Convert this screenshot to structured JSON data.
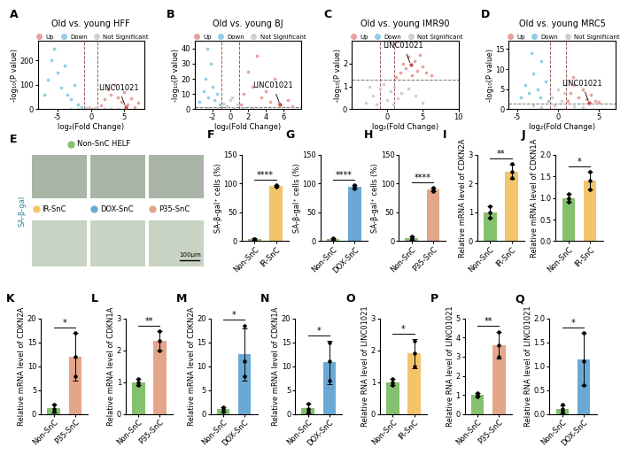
{
  "chart_data": [
    {
      "type": "scatter",
      "panel": "A",
      "title": "Old vs. young HFF",
      "x_label": "log₂(Fold Change)",
      "y_label": "-log₁₀(P value)",
      "xlim": [
        -8,
        8
      ],
      "xticks": [
        -5,
        0,
        5
      ],
      "ylim": [
        0,
        280
      ],
      "yticks": [
        0,
        100,
        200
      ],
      "vlines": [
        -1,
        1
      ],
      "hline": 1.3,
      "legend": "lower center",
      "series": [
        {
          "name": "Up",
          "color": "#e9a19b",
          "x": [
            1.5,
            2,
            2.5,
            3,
            3.5,
            4,
            4.5,
            5,
            5.5,
            6,
            6.5,
            7,
            5.2
          ],
          "values": [
            15,
            40,
            80,
            60,
            100,
            50,
            30,
            70,
            20,
            45,
            10,
            25,
            8
          ]
        },
        {
          "name": "Down",
          "color": "#92cde6",
          "x": [
            -7,
            -6.5,
            -6,
            -5.5,
            -5,
            -4.5,
            -4,
            -3.5,
            -3,
            -2.5,
            -2,
            -1.5
          ],
          "values": [
            60,
            120,
            200,
            250,
            150,
            90,
            180,
            60,
            40,
            100,
            20,
            10
          ]
        },
        {
          "name": "Not Significant",
          "color": "#cfcfcf",
          "x": [
            -0.8,
            -0.5,
            -0.2,
            0,
            0.3,
            0.6,
            0.9,
            -2,
            2,
            -3,
            3,
            4
          ],
          "values": [
            5,
            2,
            8,
            1,
            3,
            6,
            2,
            0.5,
            1,
            0.8,
            0.6,
            0.4
          ]
        }
      ],
      "annotation": {
        "text": "LINC01021",
        "x": 5.2,
        "y": 8
      }
    },
    {
      "type": "scatter",
      "panel": "B",
      "title": "Old vs. young BJ",
      "x_label": "log₂(Fold Change)",
      "y_label": "-log₁₀(P value)",
      "xlim": [
        -4,
        8
      ],
      "xticks": [
        -2,
        0,
        2,
        4,
        6
      ],
      "ylim": [
        0,
        45
      ],
      "yticks": [
        0,
        10,
        20,
        30,
        40
      ],
      "vlines": [
        -1,
        1
      ],
      "hline": 1.3,
      "legend": "lower center",
      "series": [
        {
          "name": "Up",
          "color": "#e9a19b",
          "x": [
            1.2,
            1.5,
            2,
            2.5,
            3,
            3.5,
            4,
            4.5,
            5,
            5.5,
            6.5,
            7,
            5.6
          ],
          "values": [
            3,
            10,
            25,
            15,
            35,
            8,
            12,
            5,
            20,
            4,
            6,
            2,
            3
          ]
        },
        {
          "name": "Down",
          "color": "#92cde6",
          "x": [
            -3.5,
            -3,
            -2.8,
            -2.5,
            -2.2,
            -2,
            -1.8,
            -1.5,
            -1.2,
            -2.6
          ],
          "values": [
            5,
            12,
            20,
            8,
            30,
            15,
            6,
            10,
            3,
            40
          ]
        },
        {
          "name": "Not Significant",
          "color": "#cfcfcf",
          "x": [
            -0.8,
            -0.4,
            0,
            0.4,
            0.8,
            -1.5,
            1.5,
            2.5,
            -2.5,
            0.2
          ],
          "values": [
            4,
            2,
            6,
            1,
            3,
            0.8,
            1,
            0.5,
            0.6,
            8
          ]
        }
      ],
      "annotation": {
        "text": "LINC01021",
        "x": 5.6,
        "y": 3
      }
    },
    {
      "type": "scatter",
      "panel": "C",
      "title": "Old vs. young IMR90",
      "x_label": "log₂(Fold Change)",
      "y_label": "-log₁₀(P value)",
      "xlim": [
        -5,
        10
      ],
      "xticks": [
        0,
        5,
        10
      ],
      "ylim": [
        0,
        3
      ],
      "yticks": [
        0,
        1,
        2
      ],
      "vlines": [
        -1,
        1
      ],
      "hline": 1.3,
      "legend": "lower center",
      "series": [
        {
          "name": "Up",
          "color": "#e9a19b",
          "x": [
            1.2,
            1.8,
            2.2,
            2.6,
            3,
            3.4,
            3.8,
            4.2,
            4.6,
            5,
            5.5,
            6.2,
            3.3
          ],
          "values": [
            1.4,
            1.6,
            2.0,
            1.8,
            2.3,
            1.5,
            2.1,
            1.7,
            2.4,
            1.9,
            1.6,
            1.5,
            1.95
          ]
        },
        {
          "name": "Down",
          "color": "#92cde6",
          "x": [],
          "values": []
        },
        {
          "name": "Not Significant",
          "color": "#cfcfcf",
          "x": [
            -3,
            -2,
            -1.5,
            -1,
            -0.5,
            0,
            0.5,
            1,
            1.5,
            2,
            3,
            4,
            5,
            -2.5,
            0.8
          ],
          "values": [
            0.3,
            0.6,
            0.2,
            0.9,
            1.1,
            0.4,
            0.8,
            1.0,
            0.5,
            0.7,
            0.9,
            0.6,
            0.3,
            1.0,
            0.2
          ]
        }
      ],
      "annotation": {
        "text": "LINC01021",
        "x": 3.3,
        "y": 1.95
      }
    },
    {
      "type": "scatter",
      "panel": "D",
      "title": "Old vs. young MRC5",
      "x_label": "log₂(Fold Change)",
      "y_label": "-log₁₀(P value)",
      "xlim": [
        -6,
        7
      ],
      "xticks": [
        -5,
        0,
        5
      ],
      "ylim": [
        0,
        17
      ],
      "yticks": [
        0,
        5,
        10,
        15
      ],
      "vlines": [
        -1,
        1
      ],
      "hline": 1.3,
      "legend": "lower center",
      "series": [
        {
          "name": "Up",
          "color": "#e9a19b",
          "x": [
            1.2,
            1.5,
            2,
            2.5,
            3,
            3.5,
            4,
            4.5,
            5,
            1.8,
            3.8
          ],
          "values": [
            2,
            4,
            6,
            3,
            5,
            2.5,
            3.5,
            2,
            1.8,
            8,
            1.6
          ]
        },
        {
          "name": "Down",
          "color": "#92cde6",
          "x": [
            -4.5,
            -4,
            -3.5,
            -3,
            -2.5,
            -2,
            -1.5,
            -1.2,
            -3.2,
            -2.2
          ],
          "values": [
            3,
            6,
            4,
            9,
            5,
            12,
            7,
            2,
            14,
            3
          ]
        },
        {
          "name": "Not Significant",
          "color": "#cfcfcf",
          "x": [
            -0.8,
            -0.4,
            0,
            0.4,
            0.8,
            -2,
            2,
            3,
            -3
          ],
          "values": [
            3,
            1,
            5,
            2,
            4,
            0.6,
            0.8,
            0.5,
            0.9
          ]
        }
      ],
      "annotation": {
        "text": "LINC01021",
        "x": 3.8,
        "y": 1.6
      }
    },
    {
      "type": "image_grid",
      "panel": "E",
      "header": {
        "name": "Non-SnC HELF",
        "color": "#84c06e"
      },
      "stain": "SA-β-gal",
      "scale_bar": "100μm",
      "conditions": [
        {
          "name": "IR-SnC",
          "color": "#f3c46b"
        },
        {
          "name": "DOX-SnC",
          "color": "#6ba9d5"
        },
        {
          "name": "P35-SnC",
          "color": "#e3a68a"
        }
      ]
    },
    {
      "type": "bar",
      "panel": "F",
      "categories": [
        "Non-SnC",
        "IR-SnC"
      ],
      "values": [
        3,
        96
      ],
      "errors": [
        1.5,
        1
      ],
      "points": [
        [
          2,
          3,
          4
        ],
        [
          95,
          96,
          97
        ]
      ],
      "colors": [
        "#84c06e",
        "#f3c46b"
      ],
      "y_label": "SA-β-gal⁺ cells (%)",
      "ylim": [
        0,
        150
      ],
      "yticks": [
        0,
        50,
        100,
        150
      ],
      "significance": "****"
    },
    {
      "type": "bar",
      "panel": "G",
      "categories": [
        "Non-SnC",
        "DOX-SnC"
      ],
      "values": [
        3,
        94
      ],
      "errors": [
        2,
        3
      ],
      "points": [
        [
          1.5,
          3,
          4.5
        ],
        [
          91,
          94,
          97
        ]
      ],
      "colors": [
        "#84c06e",
        "#6ba9d5"
      ],
      "y_label": "SA-β-gal⁺ cells (%)",
      "ylim": [
        0,
        150
      ],
      "yticks": [
        0,
        50,
        100,
        150
      ],
      "significance": "****"
    },
    {
      "type": "bar",
      "panel": "H",
      "categories": [
        "Non-SnC",
        "P35-SnC"
      ],
      "values": [
        5,
        90
      ],
      "errors": [
        3,
        3
      ],
      "points": [
        [
          2,
          5,
          8
        ],
        [
          87,
          90,
          93
        ]
      ],
      "colors": [
        "#84c06e",
        "#e3a68a"
      ],
      "y_label": "SA-β-gal⁺ cells (%)",
      "ylim": [
        0,
        150
      ],
      "yticks": [
        0,
        50,
        100,
        150
      ],
      "significance": "****"
    },
    {
      "type": "bar",
      "panel": "I",
      "categories": [
        "Non-SnC",
        "IR-SnC"
      ],
      "values": [
        1.0,
        2.4
      ],
      "errors": [
        0.2,
        0.25
      ],
      "points": [
        [
          0.8,
          1.0,
          1.2
        ],
        [
          2.2,
          2.4,
          2.7
        ]
      ],
      "colors": [
        "#84c06e",
        "#f3c46b"
      ],
      "y_label": "Relative mRNA level of CDKN2A",
      "ylim": [
        0,
        3
      ],
      "yticks": [
        0,
        1,
        2,
        3
      ],
      "significance": "**"
    },
    {
      "type": "bar",
      "panel": "J",
      "categories": [
        "Non-SnC",
        "IR-SnC"
      ],
      "values": [
        1.0,
        1.4
      ],
      "errors": [
        0.1,
        0.2
      ],
      "points": [
        [
          0.9,
          1.0,
          1.1
        ],
        [
          1.2,
          1.4,
          1.6
        ]
      ],
      "colors": [
        "#84c06e",
        "#f3c46b"
      ],
      "y_label": "Relative mRNA level of CDKN1A",
      "ylim": [
        0,
        2
      ],
      "yticks": [
        {
          "value": 0,
          "label": "0.0"
        },
        0.5,
        {
          "value": 1,
          "label": "1.0"
        },
        1.5,
        {
          "value": 2,
          "label": "2.0"
        }
      ],
      "significance": "*"
    },
    {
      "type": "bar",
      "panel": "K",
      "categories": [
        "Non-SnC",
        "P35-SnC"
      ],
      "values": [
        1.2,
        12
      ],
      "errors": [
        0.8,
        5
      ],
      "points": [
        [
          0.5,
          1,
          2
        ],
        [
          8,
          12,
          17
        ]
      ],
      "colors": [
        "#84c06e",
        "#e3a68a"
      ],
      "y_label": "Relative mRNA level of CDKN2A",
      "ylim": [
        0,
        20
      ],
      "yticks": [
        0,
        5,
        10,
        15,
        20
      ],
      "significance": "*"
    },
    {
      "type": "bar",
      "panel": "L",
      "categories": [
        "Non-SnC",
        "P35-SnC"
      ],
      "values": [
        1.0,
        2.3
      ],
      "errors": [
        0.1,
        0.3
      ],
      "points": [
        [
          0.9,
          1.0,
          1.1
        ],
        [
          2.0,
          2.3,
          2.6
        ]
      ],
      "colors": [
        "#84c06e",
        "#e3a68a"
      ],
      "y_label": "Relative mRNA level of CDKN1A",
      "ylim": [
        0,
        3
      ],
      "yticks": [
        0,
        1,
        2,
        3
      ],
      "significance": "**"
    },
    {
      "type": "bar",
      "panel": "M",
      "categories": [
        "Non-SnC",
        "DOX-SnC"
      ],
      "values": [
        1.0,
        12.5
      ],
      "errors": [
        0.5,
        5.5
      ],
      "points": [
        [
          0.5,
          1,
          1.5
        ],
        [
          8,
          11,
          18.5
        ]
      ],
      "colors": [
        "#84c06e",
        "#6ba9d5"
      ],
      "y_label": "Relative mRNA level of CDKN2A",
      "ylim": [
        0,
        20
      ],
      "yticks": [
        0,
        5,
        10,
        15,
        20
      ],
      "significance": "*"
    },
    {
      "type": "bar",
      "panel": "N",
      "categories": [
        "Non-SnC",
        "DOX-SnC"
      ],
      "values": [
        1.2,
        10.8
      ],
      "errors": [
        1,
        4.5
      ],
      "points": [
        [
          0.5,
          1,
          2.2
        ],
        [
          7,
          11,
          15
        ]
      ],
      "colors": [
        "#84c06e",
        "#6ba9d5"
      ],
      "y_label": "Relative mRNA level of CDKN1A",
      "ylim": [
        0,
        20
      ],
      "yticks": [
        0,
        5,
        10,
        15,
        20
      ],
      "significance": "*"
    },
    {
      "type": "bar",
      "panel": "O",
      "categories": [
        "Non-SnC",
        "IR-SnC"
      ],
      "values": [
        1.0,
        1.9
      ],
      "errors": [
        0.1,
        0.45
      ],
      "points": [
        [
          0.9,
          1.0,
          1.1
        ],
        [
          1.5,
          1.9,
          2.3
        ]
      ],
      "colors": [
        "#84c06e",
        "#f3c46b"
      ],
      "y_label": "Relative RNA level of LINC01021",
      "ylim": [
        0,
        3
      ],
      "yticks": [
        0,
        1,
        2,
        3
      ],
      "significance": "*"
    },
    {
      "type": "bar",
      "panel": "P",
      "categories": [
        "Non-SnC",
        "P35-SnC"
      ],
      "values": [
        1.0,
        3.6
      ],
      "errors": [
        0.1,
        0.7
      ],
      "points": [
        [
          0.9,
          1.0,
          1.1
        ],
        [
          3.0,
          3.6,
          4.3
        ]
      ],
      "colors": [
        "#84c06e",
        "#e3a68a"
      ],
      "y_label": "Relative RNA level of LINC01021",
      "ylim": [
        0,
        5
      ],
      "yticks": [
        0,
        1,
        2,
        3,
        4,
        5
      ],
      "significance": "**"
    },
    {
      "type": "bar",
      "panel": "Q",
      "categories": [
        "Non-SnC",
        "DOX-SnC"
      ],
      "values": [
        0.1,
        1.15
      ],
      "errors": [
        0.08,
        0.55
      ],
      "points": [
        [
          0.05,
          0.1,
          0.2
        ],
        [
          0.6,
          1.1,
          1.7
        ]
      ],
      "colors": [
        "#84c06e",
        "#6ba9d5"
      ],
      "y_label": "Relative RNA level of LINC01021",
      "ylim": [
        0,
        2
      ],
      "yticks": [
        {
          "value": 0,
          "label": "0.0"
        },
        0.5,
        {
          "value": 1,
          "label": "1.0"
        },
        1.5,
        {
          "value": 2,
          "label": "2.0"
        }
      ],
      "significance": "*"
    }
  ]
}
